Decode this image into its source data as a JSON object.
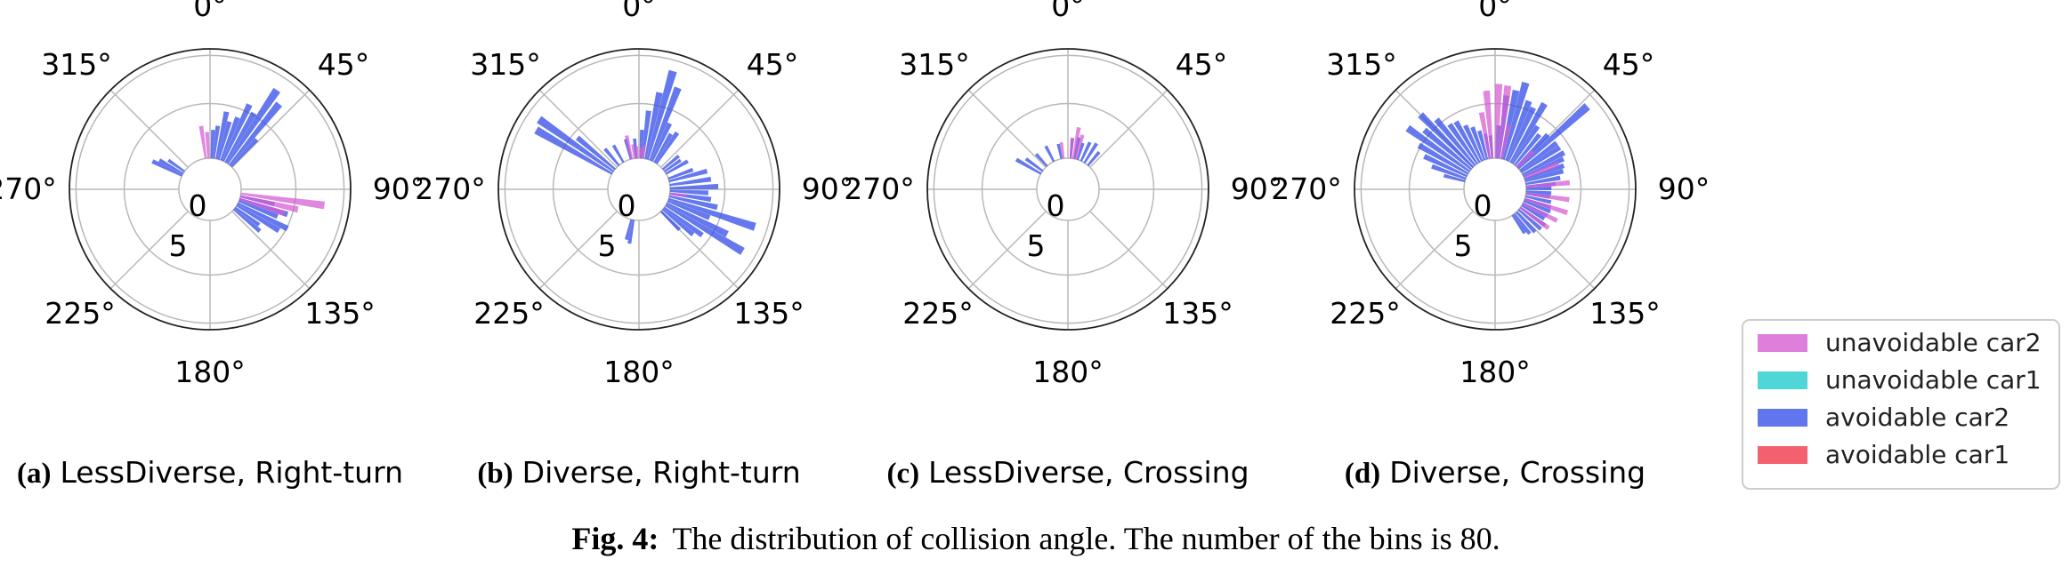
{
  "chart_data": [
    {
      "type": "polar-histogram",
      "panel_label": "(a)",
      "title": "LessDiverse, Right-turn",
      "theta_ticks": [
        "0°",
        "45°",
        "90°",
        "135°",
        "180°",
        "225°",
        "270°",
        "315°"
      ],
      "r_ticks": [
        "0",
        "5"
      ],
      "series": [
        {
          "name": "avoidable car2",
          "bins": [
            [
              3,
              2.6
            ],
            [
              7,
              3.0
            ],
            [
              12,
              4.4
            ],
            [
              16,
              3.6
            ],
            [
              21,
              4.2
            ],
            [
              25,
              5.7
            ],
            [
              30,
              5.2
            ],
            [
              34,
              8.1
            ],
            [
              39,
              7.2
            ],
            [
              43,
              3.4
            ],
            [
              103,
              3.2
            ],
            [
              108,
              4.6
            ],
            [
              112,
              3.8
            ],
            [
              117,
              5.1
            ],
            [
              121,
              4.5
            ],
            [
              126,
              2.7
            ],
            [
              130,
              3.1
            ],
            [
              296,
              3.0
            ],
            [
              300,
              2.5
            ],
            [
              305,
              1.8
            ]
          ]
        },
        {
          "name": "unavoidable car2",
          "bins": [
            [
              352,
              3.0
            ],
            [
              357,
              2.4
            ],
            [
              98,
              7.7
            ],
            [
              103,
              5.4
            ],
            [
              108,
              4.3
            ]
          ]
        }
      ]
    },
    {
      "type": "polar-histogram",
      "panel_label": "(b)",
      "title": "Diverse, Right-turn",
      "theta_ticks": [
        "0°",
        "45°",
        "90°",
        "135°",
        "180°",
        "225°",
        "270°",
        "315°"
      ],
      "r_ticks": [
        "0",
        "5"
      ],
      "series": [
        {
          "name": "avoidable car2",
          "bins": [
            [
              3,
              2.6
            ],
            [
              7,
              4.4
            ],
            [
              12,
              6.2
            ],
            [
              16,
              8.4
            ],
            [
              21,
              7.1
            ],
            [
              25,
              3.8
            ],
            [
              30,
              3.0
            ],
            [
              34,
              3.4
            ],
            [
              50,
              1.9
            ],
            [
              55,
              1.8
            ],
            [
              60,
              2.3
            ],
            [
              70,
              2.4
            ],
            [
              75,
              3.6
            ],
            [
              82,
              3.8
            ],
            [
              88,
              4.4
            ],
            [
              93,
              3.5
            ],
            [
              98,
              3.8
            ],
            [
              103,
              4.5
            ],
            [
              108,
              8.3
            ],
            [
              112,
              4.1
            ],
            [
              117,
              6.2
            ],
            [
              121,
              8.2
            ],
            [
              126,
              4.3
            ],
            [
              130,
              3.6
            ],
            [
              135,
              2.4
            ],
            [
              190,
              2.2
            ],
            [
              194,
              1.9
            ],
            [
              300,
              8.0
            ],
            [
              305,
              8.3
            ],
            [
              310,
              4.5
            ],
            [
              320,
              2.0
            ],
            [
              330,
              1.8
            ],
            [
              345,
              1.9
            ],
            [
              355,
              1.8
            ]
          ]
        },
        {
          "name": "unavoidable car2",
          "bins": [
            [
              347,
              2.2
            ],
            [
              352,
              1.3
            ],
            [
              357,
              1.1
            ],
            [
              3,
              1.0
            ],
            [
              7,
              1.2
            ],
            [
              98,
              1.5
            ]
          ]
        }
      ]
    },
    {
      "type": "polar-histogram",
      "panel_label": "(c)",
      "title": "LessDiverse, Crossing",
      "theta_ticks": [
        "0°",
        "45°",
        "90°",
        "135°",
        "180°",
        "225°",
        "270°",
        "315°"
      ],
      "r_ticks": [
        "0",
        "5"
      ],
      "series": [
        {
          "name": "avoidable car2",
          "bins": [
            [
              5,
              1.8
            ],
            [
              12,
              2.0
            ],
            [
              18,
              1.6
            ],
            [
              25,
              1.9
            ],
            [
              32,
              2.1
            ],
            [
              40,
              1.6
            ],
            [
              300,
              2.6
            ],
            [
              306,
              1.9
            ],
            [
              318,
              1.5
            ],
            [
              333,
              1.6
            ],
            [
              348,
              1.4
            ]
          ]
        },
        {
          "name": "unavoidable car2",
          "bins": [
            [
              5,
              1.9
            ],
            [
              10,
              2.9
            ],
            [
              15,
              2.3
            ],
            [
              352,
              1.5
            ]
          ]
        }
      ]
    },
    {
      "type": "polar-histogram",
      "panel_label": "(d)",
      "title": "Diverse, Crossing",
      "theta_ticks": [
        "0°",
        "45°",
        "90°",
        "135°",
        "180°",
        "225°",
        "270°",
        "315°"
      ],
      "r_ticks": [
        "0",
        "5"
      ],
      "series": [
        {
          "name": "avoidable car2",
          "bins": [
            [
              3,
              3.0
            ],
            [
              7,
              5.8
            ],
            [
              12,
              6.4
            ],
            [
              16,
              7.3
            ],
            [
              21,
              5.8
            ],
            [
              25,
              5.4
            ],
            [
              30,
              6.2
            ],
            [
              34,
              4.1
            ],
            [
              39,
              3.6
            ],
            [
              44,
              4.1
            ],
            [
              48,
              8.5
            ],
            [
              53,
              4.2
            ],
            [
              57,
              4.2
            ],
            [
              62,
              4.3
            ],
            [
              66,
              4.0
            ],
            [
              71,
              3.8
            ],
            [
              75,
              3.6
            ],
            [
              80,
              3.2
            ],
            [
              85,
              2.7
            ],
            [
              89,
              2.3
            ],
            [
              94,
              2.3
            ],
            [
              98,
              2.2
            ],
            [
              103,
              2.4
            ],
            [
              108,
              2.5
            ],
            [
              112,
              2.6
            ],
            [
              117,
              2.5
            ],
            [
              121,
              2.4
            ],
            [
              126,
              2.8
            ],
            [
              131,
              2.7
            ],
            [
              137,
              2.5
            ],
            [
              142,
              2.3
            ],
            [
              146,
              2.0
            ],
            [
              285,
              2.0
            ],
            [
              290,
              3.3
            ],
            [
              295,
              4.3
            ],
            [
              300,
              5.2
            ],
            [
              305,
              6.9
            ],
            [
              310,
              5.6
            ],
            [
              315,
              6.8
            ],
            [
              320,
              5.5
            ],
            [
              325,
              4.4
            ],
            [
              330,
              4.3
            ],
            [
              335,
              3.6
            ],
            [
              340,
              3.2
            ],
            [
              345,
              2.7
            ],
            [
              350,
              2.3
            ],
            [
              355,
              2.1
            ]
          ]
        },
        {
          "name": "unavoidable car2",
          "bins": [
            [
              350,
              4.3
            ],
            [
              355,
              6.2
            ],
            [
              2,
              6.8
            ],
            [
              7,
              6.7
            ],
            [
              12,
              3.2
            ],
            [
              45,
              2.1
            ],
            [
              68,
              3.4
            ],
            [
              85,
              4.0
            ],
            [
              98,
              4.0
            ],
            [
              108,
              4.1
            ],
            [
              117,
              3.5
            ],
            [
              126,
              3.2
            ]
          ]
        }
      ]
    }
  ],
  "legend": {
    "items": [
      {
        "label": "unavoidable car2",
        "color": "#d65fd3"
      },
      {
        "label": "unavoidable car1",
        "color": "#24cccc"
      },
      {
        "label": "avoidable car2",
        "color": "#3a52e8"
      },
      {
        "label": "avoidable car1",
        "color": "#f03a4a"
      }
    ]
  },
  "caption": {
    "tag": "Fig. 4:",
    "text": "The distribution of collision angle. The number of the bins is 80."
  },
  "colors": {
    "avoidable car2": "#3a52e8",
    "unavoidable car2": "#d65fd3",
    "grid": "#b8b8b8",
    "spine": "#222222"
  }
}
